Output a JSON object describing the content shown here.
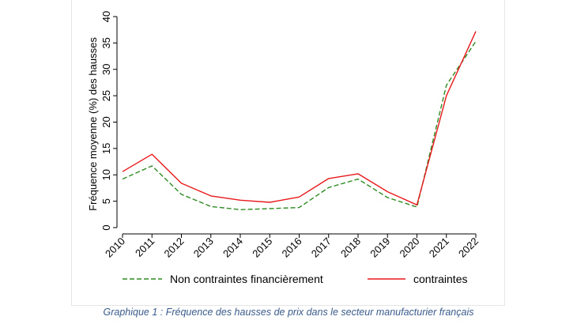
{
  "chart_data": {
    "type": "line",
    "title": "",
    "xlabel": "",
    "ylabel": "Fréquence moyenne (%) des hausses",
    "x": [
      "2010",
      "2011",
      "2012",
      "2013",
      "2014",
      "2015",
      "2016",
      "2017",
      "2018",
      "2019",
      "2020",
      "2021",
      "2022"
    ],
    "ylim": [
      0,
      40
    ],
    "yticks": [
      0,
      5,
      10,
      15,
      20,
      25,
      30,
      35,
      40
    ],
    "grid": false,
    "legend_position": "bottom",
    "series": [
      {
        "name": "Non contraintes financièrement",
        "color": "#2e8b22",
        "dash": "dashed",
        "values": [
          9.2,
          11.7,
          6.3,
          4.0,
          3.4,
          3.6,
          3.8,
          7.6,
          9.2,
          5.7,
          3.9,
          27.0,
          35.3
        ]
      },
      {
        "name": "contraintes",
        "color": "#e8191c",
        "dash": "solid",
        "values": [
          10.6,
          13.9,
          8.4,
          6.0,
          5.2,
          4.8,
          5.8,
          9.3,
          10.2,
          6.8,
          4.3,
          25.0,
          37.2
        ]
      }
    ]
  },
  "caption": "Graphique 1 : Fréquence des hausses de prix dans le secteur manufacturier français"
}
